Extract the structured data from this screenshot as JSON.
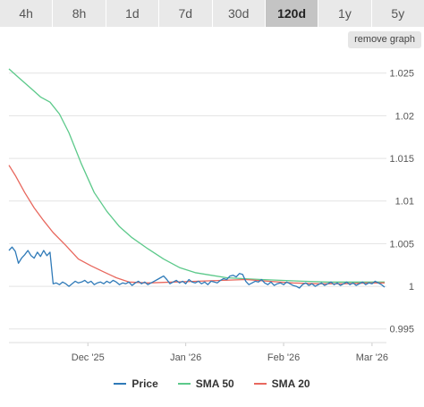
{
  "toolbar": {
    "ranges": [
      "4h",
      "8h",
      "1d",
      "7d",
      "30d",
      "120d",
      "1y",
      "5y"
    ],
    "active": "120d",
    "remove_graph_label": "remove graph"
  },
  "chart_data": {
    "type": "line",
    "title": "",
    "xlabel": "",
    "ylabel": "",
    "x_ticks": [
      "Dec '25",
      "Jan '26",
      "Feb '26",
      "Mar '26"
    ],
    "y_ticks": [
      "1.025",
      "1.02",
      "1.015",
      "1.01",
      "1.005",
      "1",
      "0.995"
    ],
    "ylim": [
      0.9934,
      1.0277
    ],
    "xlim": [
      "2025-11-06",
      "2026-03-05"
    ],
    "grid": true,
    "legend_position": "bottom",
    "series": [
      {
        "name": "Price",
        "color": "#2f7ab8",
        "points": [
          [
            "2025-11-06",
            1.0042
          ],
          [
            "2025-11-07",
            1.0046
          ],
          [
            "2025-11-08",
            1.0041
          ],
          [
            "2025-11-09",
            1.0027
          ],
          [
            "2025-11-10",
            1.0033
          ],
          [
            "2025-11-11",
            1.0037
          ],
          [
            "2025-11-12",
            1.0042
          ],
          [
            "2025-11-13",
            1.0036
          ],
          [
            "2025-11-14",
            1.0033
          ],
          [
            "2025-11-15",
            1.004
          ],
          [
            "2025-11-16",
            1.0035
          ],
          [
            "2025-11-17",
            1.0042
          ],
          [
            "2025-11-18",
            1.0036
          ],
          [
            "2025-11-19",
            1.004
          ],
          [
            "2025-11-20",
            1.0003
          ],
          [
            "2025-11-21",
            1.0004
          ],
          [
            "2025-11-22",
            1.0002
          ],
          [
            "2025-11-23",
            1.0005
          ],
          [
            "2025-11-24",
            1.0003
          ],
          [
            "2025-11-25",
            1.0
          ],
          [
            "2025-11-26",
            1.0003
          ],
          [
            "2025-11-27",
            1.0006
          ],
          [
            "2025-11-28",
            1.0004
          ],
          [
            "2025-11-29",
            1.0005
          ],
          [
            "2025-11-30",
            1.0007
          ],
          [
            "2025-12-01",
            1.0004
          ],
          [
            "2025-12-02",
            1.0006
          ],
          [
            "2025-12-03",
            1.0002
          ],
          [
            "2025-12-04",
            1.0004
          ],
          [
            "2025-12-05",
            1.0005
          ],
          [
            "2025-12-06",
            1.0003
          ],
          [
            "2025-12-07",
            1.0006
          ],
          [
            "2025-12-08",
            1.0004
          ],
          [
            "2025-12-09",
            1.0007
          ],
          [
            "2025-12-10",
            1.0005
          ],
          [
            "2025-12-11",
            1.0002
          ],
          [
            "2025-12-12",
            1.0004
          ],
          [
            "2025-12-13",
            1.0003
          ],
          [
            "2025-12-14",
            1.0005
          ],
          [
            "2025-12-15",
            1.0001
          ],
          [
            "2025-12-16",
            1.0004
          ],
          [
            "2025-12-17",
            1.0006
          ],
          [
            "2025-12-18",
            1.0003
          ],
          [
            "2025-12-19",
            1.0005
          ],
          [
            "2025-12-20",
            1.0002
          ],
          [
            "2025-12-21",
            1.0004
          ],
          [
            "2025-12-22",
            1.0006
          ],
          [
            "2025-12-23",
            1.0008
          ],
          [
            "2025-12-24",
            1.001
          ],
          [
            "2025-12-25",
            1.0012
          ],
          [
            "2025-12-26",
            1.0008
          ],
          [
            "2025-12-27",
            1.0003
          ],
          [
            "2025-12-28",
            1.0005
          ],
          [
            "2025-12-29",
            1.0007
          ],
          [
            "2025-12-30",
            1.0004
          ],
          [
            "2025-12-31",
            1.0006
          ],
          [
            "2026-01-01",
            1.0003
          ],
          [
            "2026-01-02",
            1.0008
          ],
          [
            "2026-01-03",
            1.0005
          ],
          [
            "2026-01-04",
            1.0004
          ],
          [
            "2026-01-05",
            1.0006
          ],
          [
            "2026-01-06",
            1.0003
          ],
          [
            "2026-01-07",
            1.0005
          ],
          [
            "2026-01-08",
            1.0002
          ],
          [
            "2026-01-09",
            1.0006
          ],
          [
            "2026-01-10",
            1.0005
          ],
          [
            "2026-01-11",
            1.0004
          ],
          [
            "2026-01-12",
            1.0007
          ],
          [
            "2026-01-13",
            1.0009
          ],
          [
            "2026-01-14",
            1.0008
          ],
          [
            "2026-01-15",
            1.0012
          ],
          [
            "2026-01-16",
            1.0013
          ],
          [
            "2026-01-17",
            1.0011
          ],
          [
            "2026-01-18",
            1.0015
          ],
          [
            "2026-01-19",
            1.0014
          ],
          [
            "2026-01-20",
            1.0006
          ],
          [
            "2026-01-21",
            1.0002
          ],
          [
            "2026-01-22",
            1.0004
          ],
          [
            "2026-01-23",
            1.0006
          ],
          [
            "2026-01-24",
            1.0005
          ],
          [
            "2026-01-25",
            1.0008
          ],
          [
            "2026-01-26",
            1.0004
          ],
          [
            "2026-01-27",
            1.0002
          ],
          [
            "2026-01-28",
            1.0005
          ],
          [
            "2026-01-29",
            1.0001
          ],
          [
            "2026-01-30",
            1.0003
          ],
          [
            "2026-01-31",
            1.0004
          ],
          [
            "2026-02-01",
            1.0002
          ],
          [
            "2026-02-02",
            1.0005
          ],
          [
            "2026-02-03",
            1.0003
          ],
          [
            "2026-02-04",
            1.0001
          ],
          [
            "2026-02-05",
            1.0
          ],
          [
            "2026-02-06",
            0.9998
          ],
          [
            "2026-02-07",
            1.0002
          ],
          [
            "2026-02-08",
            1.0004
          ],
          [
            "2026-02-09",
            1.0001
          ],
          [
            "2026-02-10",
            1.0003
          ],
          [
            "2026-02-11",
            1.0
          ],
          [
            "2026-02-12",
            1.0002
          ],
          [
            "2026-02-13",
            1.0004
          ],
          [
            "2026-02-14",
            1.0001
          ],
          [
            "2026-02-15",
            1.0003
          ],
          [
            "2026-02-16",
            1.0005
          ],
          [
            "2026-02-17",
            1.0002
          ],
          [
            "2026-02-18",
            1.0004
          ],
          [
            "2026-02-19",
            1.0001
          ],
          [
            "2026-02-20",
            1.0003
          ],
          [
            "2026-02-21",
            1.0005
          ],
          [
            "2026-02-22",
            1.0002
          ],
          [
            "2026-02-23",
            1.0004
          ],
          [
            "2026-02-24",
            1.0001
          ],
          [
            "2026-02-25",
            1.0003
          ],
          [
            "2026-02-26",
            1.0005
          ],
          [
            "2026-02-27",
            1.0002
          ],
          [
            "2026-02-28",
            1.0004
          ],
          [
            "2026-03-01",
            1.0003
          ],
          [
            "2026-03-02",
            1.0006
          ],
          [
            "2026-03-03",
            1.0004
          ],
          [
            "2026-03-04",
            1.0002
          ],
          [
            "2026-03-05",
            0.9999
          ]
        ]
      },
      {
        "name": "SMA 50",
        "color": "#5cc98a",
        "points": [
          [
            "2025-11-06",
            1.0255
          ],
          [
            "2025-11-09",
            1.0245
          ],
          [
            "2025-11-13",
            1.0232
          ],
          [
            "2025-11-16",
            1.0222
          ],
          [
            "2025-11-19",
            1.0216
          ],
          [
            "2025-11-22",
            1.0202
          ],
          [
            "2025-11-25",
            1.018
          ],
          [
            "2025-11-29",
            1.0143
          ],
          [
            "2025-12-03",
            1.011
          ],
          [
            "2025-12-07",
            1.0088
          ],
          [
            "2025-12-11",
            1.007
          ],
          [
            "2025-12-15",
            1.0057
          ],
          [
            "2025-12-20",
            1.0044
          ],
          [
            "2025-12-25",
            1.0032
          ],
          [
            "2025-12-30",
            1.0022
          ],
          [
            "2026-01-04",
            1.0016
          ],
          [
            "2026-01-09",
            1.0013
          ],
          [
            "2026-01-14",
            1.001
          ],
          [
            "2026-01-19",
            1.0009
          ],
          [
            "2026-01-25",
            1.0008
          ],
          [
            "2026-01-31",
            1.0007
          ],
          [
            "2026-02-07",
            1.0006
          ],
          [
            "2026-02-15",
            1.0005
          ],
          [
            "2026-02-23",
            1.0005
          ],
          [
            "2026-03-05",
            1.0005
          ]
        ]
      },
      {
        "name": "SMA 20",
        "color": "#e8685e",
        "points": [
          [
            "2025-11-06",
            1.0142
          ],
          [
            "2025-11-08",
            1.013
          ],
          [
            "2025-11-11",
            1.011
          ],
          [
            "2025-11-14",
            1.0092
          ],
          [
            "2025-11-17",
            1.0077
          ],
          [
            "2025-11-20",
            1.0063
          ],
          [
            "2025-11-24",
            1.0048
          ],
          [
            "2025-11-28",
            1.0032
          ],
          [
            "2025-12-02",
            1.0024
          ],
          [
            "2025-12-06",
            1.0017
          ],
          [
            "2025-12-10",
            1.001
          ],
          [
            "2025-12-14",
            1.0005
          ],
          [
            "2025-12-20",
            1.0004
          ],
          [
            "2025-12-28",
            1.0005
          ],
          [
            "2026-01-05",
            1.0006
          ],
          [
            "2026-01-13",
            1.0007
          ],
          [
            "2026-01-20",
            1.0008
          ],
          [
            "2026-01-27",
            1.0006
          ],
          [
            "2026-02-04",
            1.0004
          ],
          [
            "2026-02-12",
            1.0003
          ],
          [
            "2026-02-20",
            1.0003
          ],
          [
            "2026-02-28",
            1.0004
          ],
          [
            "2026-03-05",
            1.0004
          ]
        ]
      }
    ]
  }
}
